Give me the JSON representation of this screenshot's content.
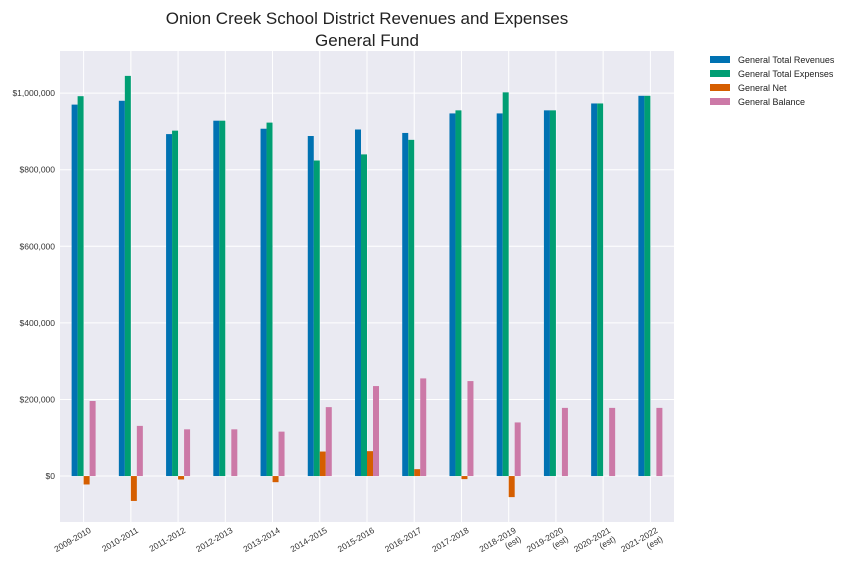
{
  "chart_data": {
    "type": "bar",
    "title": [
      "Onion Creek School District Revenues and Expenses",
      "General Fund"
    ],
    "categories": [
      [
        "2009-2010"
      ],
      [
        "2010-2011"
      ],
      [
        "2011-2012"
      ],
      [
        "2012-2013"
      ],
      [
        "2013-2014"
      ],
      [
        "2014-2015"
      ],
      [
        "2015-2016"
      ],
      [
        "2016-2017"
      ],
      [
        "2017-2018"
      ],
      [
        "2018-2019",
        "(est)"
      ],
      [
        "2019-2020",
        "(est)"
      ],
      [
        "2020-2021",
        "(est)"
      ],
      [
        "2021-2022",
        "(est)"
      ]
    ],
    "series": [
      {
        "name": "General Total Revenues",
        "color": "#0072B2",
        "values": [
          970000,
          980000,
          893000,
          928000,
          907000,
          888000,
          905000,
          896000,
          947000,
          947000,
          955000,
          973000,
          993000
        ]
      },
      {
        "name": "General Total Expenses",
        "color": "#009E73",
        "values": [
          992000,
          1045000,
          902000,
          928000,
          923000,
          824000,
          840000,
          878000,
          955000,
          1002000,
          955000,
          973000,
          993000
        ]
      },
      {
        "name": "General Net",
        "color": "#D55E00",
        "values": [
          -22000,
          -65000,
          -9000,
          0,
          -16000,
          64000,
          65000,
          18000,
          -8000,
          -55000,
          0,
          0,
          0
        ]
      },
      {
        "name": "General Balance",
        "color": "#CC79A7",
        "values": [
          196000,
          131000,
          122000,
          122000,
          116000,
          180000,
          235000,
          255000,
          248000,
          140000,
          178000,
          178000,
          178000
        ]
      }
    ],
    "yticks": [
      0,
      200000,
      400000,
      600000,
      800000,
      1000000
    ],
    "ytick_labels": [
      "$0",
      "$200,000",
      "$400,000",
      "$600,000",
      "$800,000",
      "$1,000,000"
    ],
    "ylim": [
      -120000,
      1110000
    ],
    "grid": true,
    "legend_position": "outside-top-right"
  }
}
